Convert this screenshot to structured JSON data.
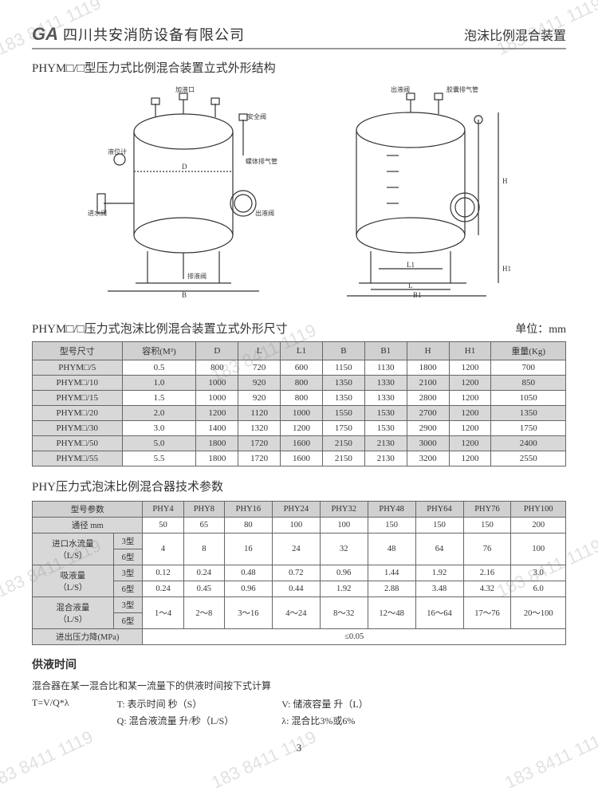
{
  "header": {
    "logo": "GA",
    "company": "四川共安消防设备有限公司",
    "doc_title": "泡沫比例混合装置"
  },
  "section1_title": "PHYM□/□型压力式比例混合装置立式外形结构",
  "diagram_left": {
    "labels": [
      "加液口",
      "安全阀",
      "液位计",
      "螺体排气管",
      "进水阀",
      "出液阀",
      "排液阀"
    ],
    "dims": [
      "D",
      "B"
    ]
  },
  "diagram_right": {
    "labels": [
      "出液阀",
      "胶囊排气管"
    ],
    "dims": [
      "L",
      "L1",
      "B1",
      "H",
      "H1"
    ]
  },
  "section2_title": "PHYM□/□压力式泡沫比例混合装置立式外形尺寸",
  "unit_label": "单位：mm",
  "table1": {
    "columns": [
      "型号尺寸",
      "容积(M³)",
      "D",
      "L",
      "L1",
      "B",
      "B1",
      "H",
      "H1",
      "重量(Kg)"
    ],
    "rows": [
      [
        "PHYM□/5",
        "0.5",
        "800",
        "720",
        "600",
        "1150",
        "1130",
        "1800",
        "1200",
        "700"
      ],
      [
        "PHYM□/10",
        "1.0",
        "1000",
        "920",
        "800",
        "1350",
        "1330",
        "2100",
        "1200",
        "850"
      ],
      [
        "PHYM□/15",
        "1.5",
        "1000",
        "920",
        "800",
        "1350",
        "1330",
        "2800",
        "1200",
        "1050"
      ],
      [
        "PHYM□/20",
        "2.0",
        "1200",
        "1120",
        "1000",
        "1550",
        "1530",
        "2700",
        "1200",
        "1350"
      ],
      [
        "PHYM□/30",
        "3.0",
        "1400",
        "1320",
        "1200",
        "1750",
        "1530",
        "2900",
        "1200",
        "1750"
      ],
      [
        "PHYM□/50",
        "5.0",
        "1800",
        "1720",
        "1600",
        "2150",
        "2130",
        "3000",
        "1200",
        "2400"
      ],
      [
        "PHYM□/55",
        "5.5",
        "1800",
        "1720",
        "1600",
        "2150",
        "2130",
        "3200",
        "1200",
        "2550"
      ]
    ],
    "alt_rows": [
      1,
      3,
      5
    ],
    "header_bg": "#d0d0d0",
    "alt_bg": "#d8d8d8",
    "border_color": "#666666"
  },
  "section3_title": "PHY压力式泡沫比例混合器技术参数",
  "table2": {
    "col_param": "型号参数",
    "models": [
      "PHY4",
      "PHY8",
      "PHY16",
      "PHY24",
      "PHY32",
      "PHY48",
      "PHY64",
      "PHY76",
      "PHY100"
    ],
    "row_tongji": {
      "label": "通径  mm",
      "vals": [
        "50",
        "65",
        "80",
        "100",
        "100",
        "150",
        "150",
        "150",
        "200"
      ]
    },
    "row_inflow": {
      "label": "进口水流量\n（L/S）",
      "sub": [
        "3型",
        "6型"
      ],
      "vals": [
        "4",
        "8",
        "16",
        "24",
        "32",
        "48",
        "64",
        "76",
        "100"
      ]
    },
    "row_absorp": {
      "label": "吸液量\n（L/S）",
      "sub": [
        "3型",
        "6型"
      ],
      "vals3": [
        "0.12",
        "0.24",
        "0.48",
        "0.72",
        "0.96",
        "1.44",
        "1.92",
        "2.16",
        "3.0"
      ],
      "vals6": [
        "0.24",
        "0.45",
        "0.96",
        "0.44",
        "1.92",
        "2.88",
        "3.48",
        "4.32",
        "6.0"
      ]
    },
    "row_mix": {
      "label": "混合液量\n（L/S）",
      "sub": [
        "3型",
        "6型"
      ],
      "vals": [
        "1～4",
        "2～8",
        "3～16",
        "4～24",
        "8～32",
        "12～48",
        "16～64",
        "17～76",
        "20～100"
      ]
    },
    "row_press": {
      "label": "进出压力降(MPa)",
      "val": "≤0.05"
    }
  },
  "supply": {
    "title": "供液时间",
    "note": "混合器在某一混合比和某一流量下的供液时间按下式计算",
    "formula": "T=V/Q*λ",
    "def_T": "T: 表示时间 秒（S）",
    "def_V": "V: 储液容量 升（L）",
    "def_Q": "Q: 混合液流量 升/秒（L/S）",
    "def_lambda": "λ: 混合比3%或6%"
  },
  "page_number": "3",
  "watermark_text": "183 8411 1119",
  "colors": {
    "text": "#333333",
    "border": "#666666",
    "header_bg": "#d0d0d0",
    "alt_bg": "#d8d8d8",
    "watermark": "rgba(120,120,120,0.22)"
  }
}
